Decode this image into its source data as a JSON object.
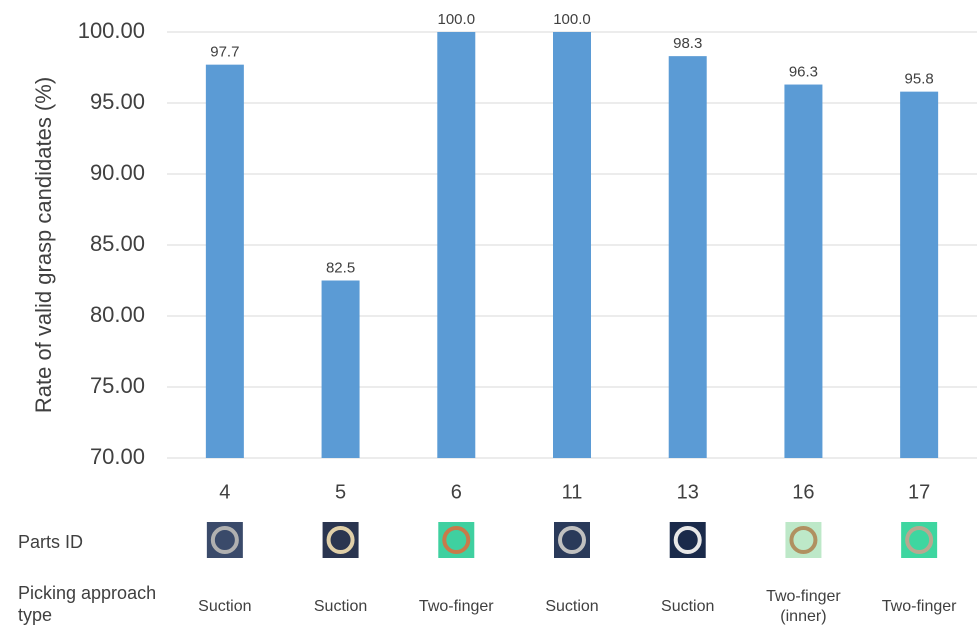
{
  "chart_data": {
    "type": "bar",
    "y_label": "Rate of valid grasp candidates (%)",
    "categories": [
      "4",
      "5",
      "6",
      "11",
      "13",
      "16",
      "17"
    ],
    "values": [
      97.7,
      82.5,
      100.0,
      100.0,
      98.3,
      96.3,
      95.8
    ],
    "value_labels": [
      "97.7",
      "82.5",
      "100.0",
      "100.0",
      "98.3",
      "96.3",
      "95.8"
    ],
    "color": "#5b9bd5",
    "ylim": [
      70,
      100
    ],
    "yticks": [
      {
        "value": 70,
        "label": "70.00"
      },
      {
        "value": 75,
        "label": "75.00"
      },
      {
        "value": 80,
        "label": "80.00"
      },
      {
        "value": 85,
        "label": "85.00"
      },
      {
        "value": 90,
        "label": "90.00"
      },
      {
        "value": 95,
        "label": "95.00"
      },
      {
        "value": 100,
        "label": "100.00"
      }
    ],
    "grid": true,
    "parts_id_label": "Parts ID",
    "approach_label": "Picking approach type",
    "approach_types": [
      "Suction",
      "Suction",
      "Two-finger",
      "Suction",
      "Suction",
      "Two-finger (inner)",
      "Two-finger"
    ]
  }
}
